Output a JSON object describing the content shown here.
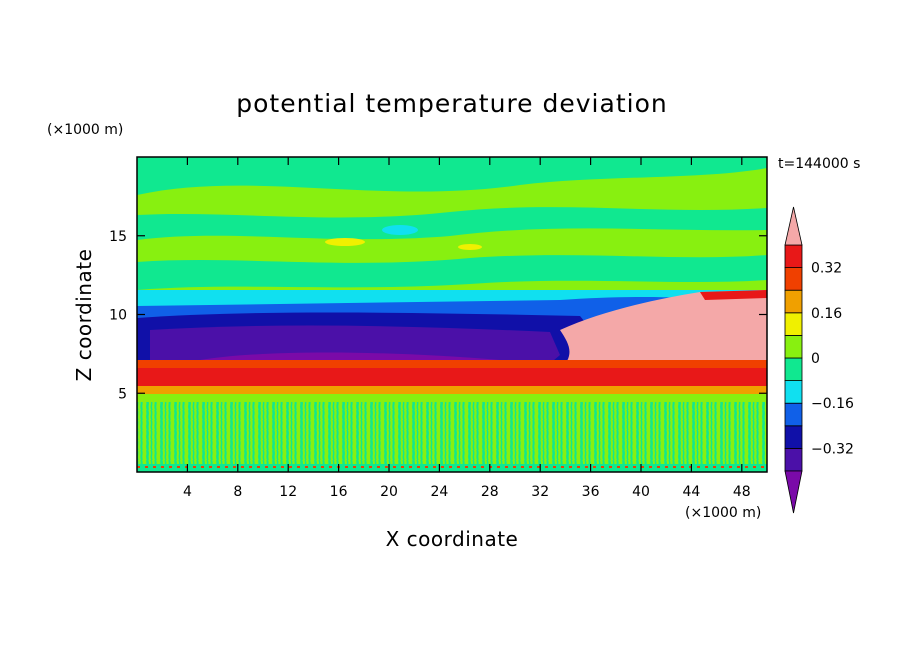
{
  "chart_data": {
    "type": "heatmap",
    "title": "potential temperature deviation",
    "xlabel": "X coordinate",
    "ylabel": "Z coordinate",
    "x_unit": "(×1000 m)",
    "y_unit": "(×1000 m)",
    "time_label": "t=144000 s",
    "xlim": [
      0,
      50
    ],
    "ylim": [
      0,
      20
    ],
    "x_ticks": [
      4,
      8,
      12,
      16,
      20,
      24,
      28,
      32,
      36,
      40,
      44,
      48
    ],
    "y_ticks": [
      5,
      10,
      15
    ],
    "colorbar": {
      "levels": [
        -0.4,
        -0.32,
        -0.24,
        -0.16,
        -0.08,
        0,
        0.08,
        0.16,
        0.24,
        0.32,
        0.4
      ],
      "tick_labels": [
        "0.32",
        "0.16",
        "0",
        "−0.16",
        "−0.32"
      ],
      "tick_values": [
        0.32,
        0.16,
        0,
        -0.16,
        -0.32
      ],
      "colors": [
        "#7a0aa8",
        "#4b10a8",
        "#1010a8",
        "#1060e8",
        "#10e0f0",
        "#10e890",
        "#88f010",
        "#f0f000",
        "#f0a000",
        "#f04000",
        "#e81818",
        "#f4a8a8"
      ],
      "extend": "both"
    },
    "regions": [
      {
        "desc": "background upper layer",
        "value": 0.04
      },
      {
        "desc": "strong warm band",
        "z_range": [
          5.3,
          6.5
        ],
        "value": 0.36
      },
      {
        "desc": "cold layer",
        "z_range": [
          6.5,
          10.5
        ],
        "x_range": [
          0,
          34
        ],
        "value": -0.32
      },
      {
        "desc": "warm anomaly",
        "z_range": [
          6.5,
          11.5
        ],
        "x_range": [
          34,
          50
        ],
        "value": 0.44
      },
      {
        "desc": "lower noisy layer",
        "z_range": [
          0,
          5
        ],
        "value": 0.0
      }
    ]
  }
}
